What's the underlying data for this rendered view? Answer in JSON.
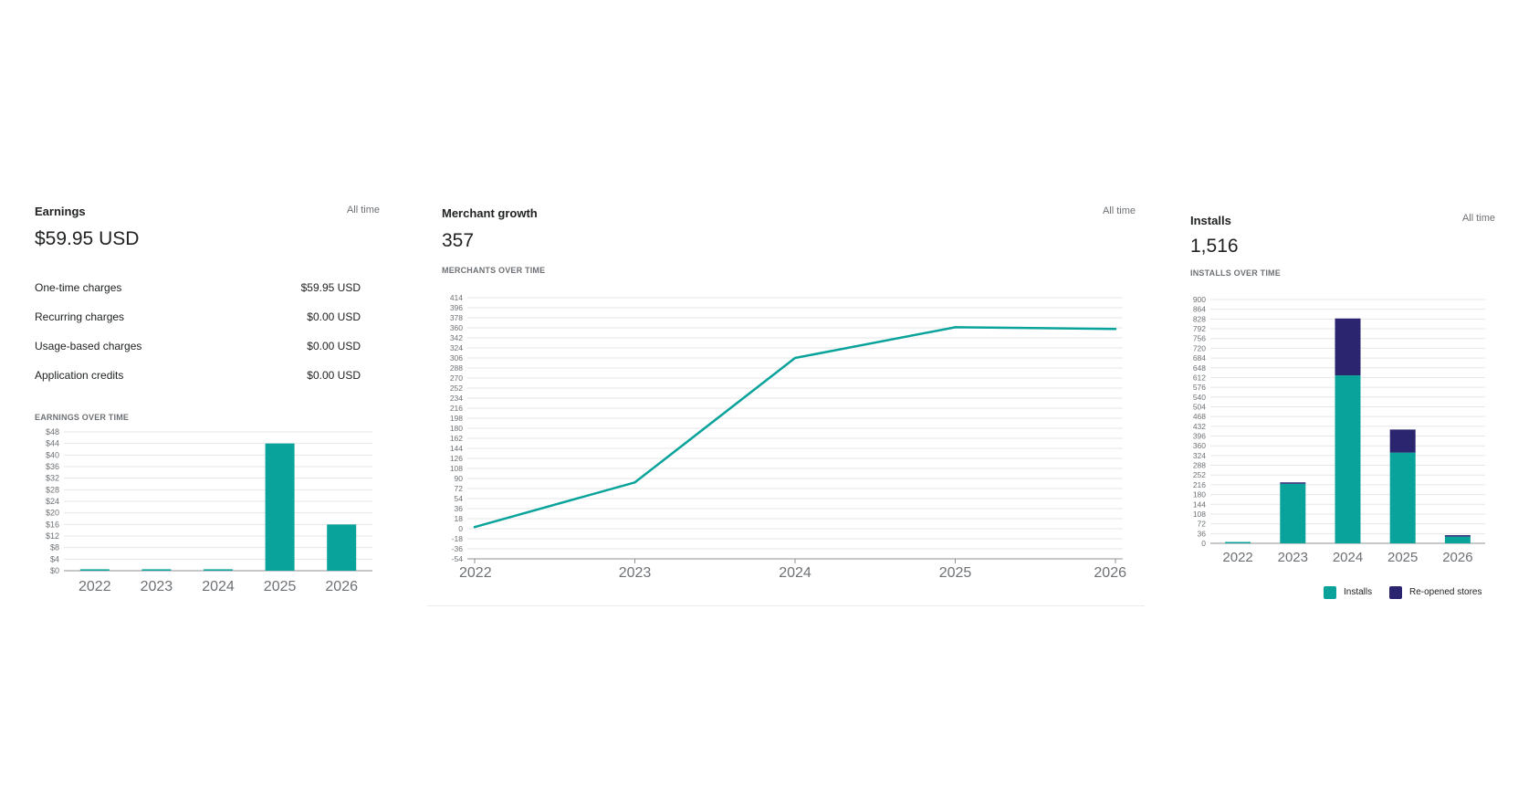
{
  "earnings": {
    "title": "Earnings",
    "range": "All time",
    "total": "$59.95 USD",
    "rows": [
      {
        "label": "One-time charges",
        "value": "$59.95 USD"
      },
      {
        "label": "Recurring charges",
        "value": "$0.00 USD"
      },
      {
        "label": "Usage-based charges",
        "value": "$0.00 USD"
      },
      {
        "label": "Application credits",
        "value": "$0.00 USD"
      }
    ],
    "chart_label": "EARNINGS OVER TIME"
  },
  "merchants": {
    "title": "Merchant growth",
    "range": "All time",
    "total": "357",
    "chart_label": "MERCHANTS OVER TIME"
  },
  "installs": {
    "title": "Installs",
    "range": "All time",
    "total": "1,516",
    "chart_label": "INSTALLS OVER TIME",
    "legend": [
      "Installs",
      "Re-opened stores"
    ]
  },
  "colors": {
    "teal": "#0aa39b",
    "navy": "#2b2570",
    "grid": "#e6e6e6",
    "axis": "#8c9196",
    "tick_text": "#6d7175"
  },
  "chart_data": [
    {
      "type": "bar",
      "categories": [
        "2022",
        "2023",
        "2024",
        "2025",
        "2026"
      ],
      "values": [
        0.5,
        0.5,
        0.5,
        44,
        16
      ],
      "yticks": [
        "$0",
        "$4",
        "$8",
        "$12",
        "$16",
        "$20",
        "$24",
        "$28",
        "$32",
        "$36",
        "$40",
        "$44",
        "$48"
      ],
      "ylim": [
        0,
        48
      ],
      "grid": true
    },
    {
      "type": "line",
      "x": [
        "2022",
        "2023",
        "2024",
        "2025",
        "2026"
      ],
      "values": [
        3,
        83,
        306,
        361,
        358
      ],
      "yticks": [
        "-54",
        "-36",
        "-18",
        "0",
        "18",
        "36",
        "54",
        "72",
        "90",
        "108",
        "126",
        "144",
        "162",
        "180",
        "198",
        "216",
        "234",
        "252",
        "270",
        "288",
        "306",
        "324",
        "342",
        "360",
        "378",
        "396",
        "414"
      ],
      "ylim": [
        -54,
        414
      ],
      "grid": true
    },
    {
      "type": "bar",
      "stacked": true,
      "categories": [
        "2022",
        "2023",
        "2024",
        "2025",
        "2026"
      ],
      "series": [
        {
          "name": "Installs",
          "values": [
            5,
            220,
            620,
            335,
            25
          ]
        },
        {
          "name": "Re-opened stores",
          "values": [
            0,
            5,
            210,
            85,
            5
          ]
        }
      ],
      "yticks": [
        "0",
        "36",
        "72",
        "108",
        "144",
        "180",
        "216",
        "252",
        "288",
        "324",
        "360",
        "396",
        "432",
        "468",
        "504",
        "540",
        "576",
        "612",
        "648",
        "684",
        "720",
        "756",
        "792",
        "828",
        "864",
        "900"
      ],
      "ylim": [
        0,
        900
      ],
      "legend": "bottom-right",
      "grid": true
    }
  ]
}
